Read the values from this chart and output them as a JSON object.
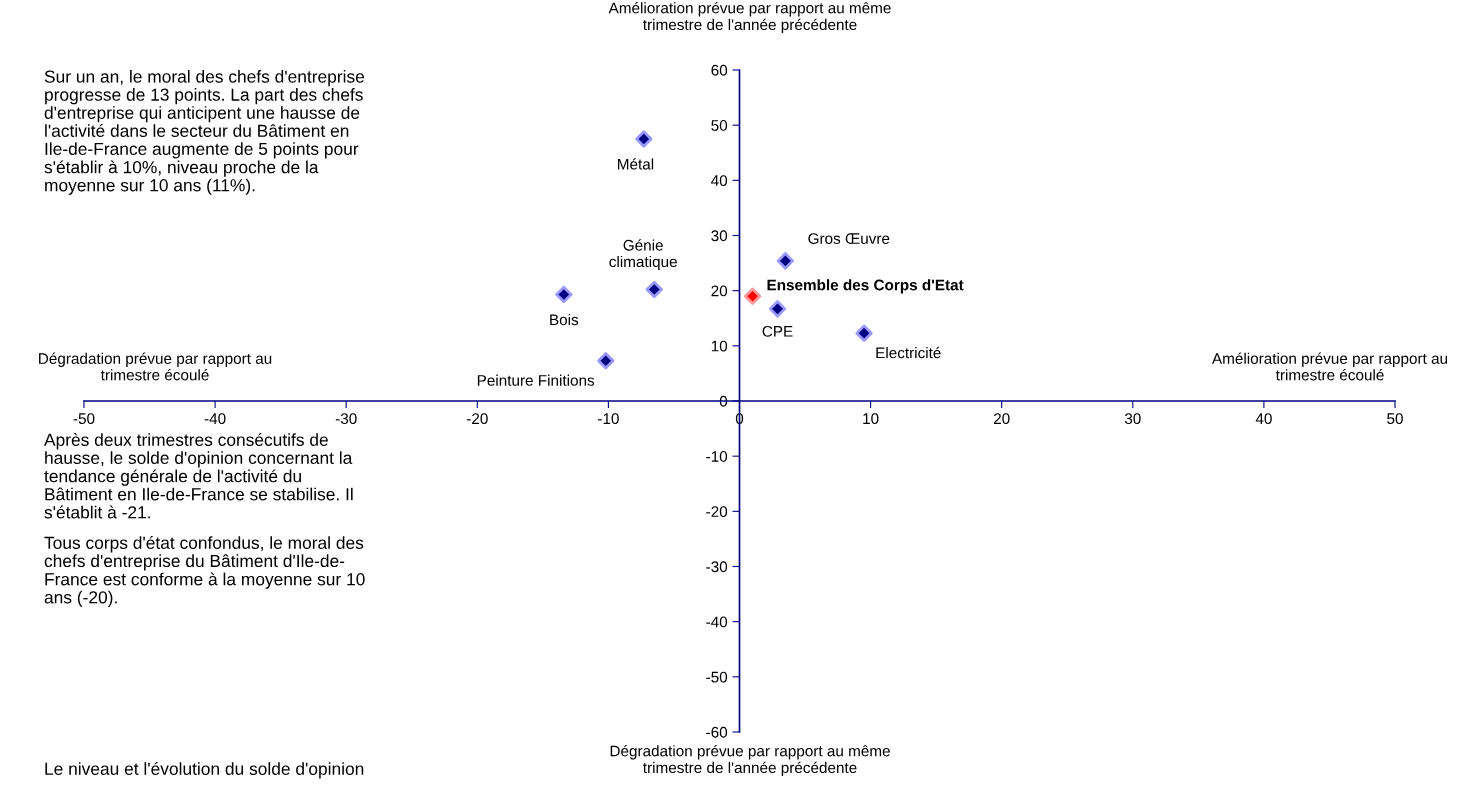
{
  "chart_data": {
    "type": "scatter",
    "marker": "diamond",
    "grid": false,
    "legend": false,
    "xlim": [
      -50,
      50
    ],
    "xticks": [
      -50,
      -40,
      -30,
      -20,
      -10,
      0,
      10,
      20,
      30,
      40,
      50
    ],
    "ylim": [
      -60,
      60
    ],
    "yticks": [
      -60,
      -50,
      -40,
      -30,
      -20,
      -10,
      0,
      10,
      20,
      30,
      40,
      50,
      60
    ],
    "series": [
      {
        "name": "Métal",
        "color": "#000080",
        "x": [
          -7.3
        ],
        "values": [
          47.5
        ]
      },
      {
        "name": "Génie\nclimatique",
        "color": "#000080",
        "x": [
          -6.5
        ],
        "values": [
          20.2
        ]
      },
      {
        "name": "Bois",
        "color": "#000080",
        "x": [
          -13.4
        ],
        "values": [
          19.3
        ]
      },
      {
        "name": "Peinture Finitions",
        "color": "#000080",
        "x": [
          -10.2
        ],
        "values": [
          7.3
        ]
      },
      {
        "name": "Ensemble des Corps d'Etat",
        "color": "#ff0000",
        "x": [
          1.0
        ],
        "values": [
          19.0
        ]
      },
      {
        "name": "CPE",
        "color": "#000080",
        "x": [
          2.9
        ],
        "values": [
          16.7
        ]
      },
      {
        "name": "Gros Œuvre",
        "color": "#000080",
        "x": [
          3.5
        ],
        "values": [
          25.4
        ]
      },
      {
        "name": "Electricité",
        "color": "#000080",
        "x": [
          9.5
        ],
        "values": [
          12.3
        ]
      }
    ],
    "annotations": [
      "Amélioration prévue par rapport au même\ntrimestre de l'année précédente",
      "Dégradation prévue par rapport au même\ntrimestre de l'année précédente",
      "Dégradation prévue par rapport au\ntrimestre écoulé",
      "Amélioration prévue par rapport au\ntrimestre écoulé",
      "Sur un an, le moral des chefs d'entreprise\nprogresse de 13 points. La part des chefs\nd'entreprise qui anticipent une hausse de\nl'activité dans le secteur du Bâtiment en\nIle-de-France augmente de 5 points pour\ns'établir à 10%, niveau proche de la\nmoyenne sur 10 ans (11%).",
      "Après deux trimestres consécutifs de\nhausse, le solde d'opinion concernant la\ntendance générale de l'activité du\nBâtiment en Ile-de-France se stabilise. Il\ns'établit à -21.",
      "Tous corps d'état confondus, le moral des\nchefs d'entreprise du Bâtiment d'Ile-de-\nFrance est conforme à la moyenne sur 10\nans (-20).",
      "Le niveau et l'évolution du solde d'opinion"
    ]
  }
}
